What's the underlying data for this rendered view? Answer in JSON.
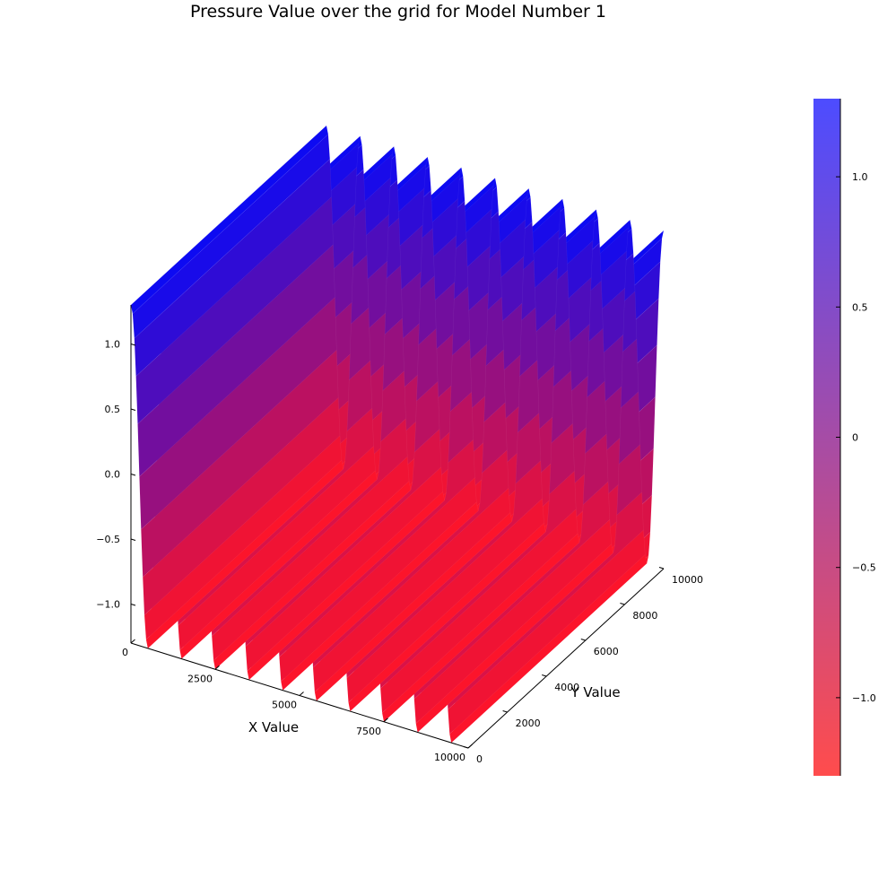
{
  "chart_data": {
    "type": "surface",
    "title": "Pressure Value over the grid for Model Number 1",
    "xlabel": "X Value",
    "ylabel": "Y Value",
    "zlabel": "",
    "xlim": [
      0,
      10000
    ],
    "ylim": [
      0,
      10000
    ],
    "zlim": [
      -1.3,
      1.3
    ],
    "x_ticks": [
      "0",
      "2500",
      "5000",
      "7500",
      "10000"
    ],
    "x_tick_values": [
      0,
      2500,
      5000,
      7500,
      10000
    ],
    "y_ticks": [
      "0",
      "2000",
      "4000",
      "6000",
      "8000",
      "10000"
    ],
    "y_tick_values": [
      0,
      2000,
      4000,
      6000,
      8000,
      10000
    ],
    "z_ticks": [
      "−1.0",
      "−0.5",
      "0.0",
      "0.5",
      "1.0"
    ],
    "z_tick_values": [
      -1.0,
      -0.5,
      0.0,
      0.5,
      1.0
    ],
    "surface": {
      "function": "z = cos(2*pi*x/period)",
      "period": 1000,
      "amplitude": 1.3,
      "x_range": [
        0,
        10000
      ],
      "y_range": [
        0,
        10000
      ]
    },
    "colorbar": {
      "ticks": [
        "−1.0",
        "−0.5",
        "0",
        "0.5",
        "1.0"
      ],
      "tick_values": [
        -1.0,
        -0.5,
        0,
        0.5,
        1.0
      ],
      "range": [
        -1.3,
        1.3
      ],
      "color_low": "#ff0000",
      "color_high": "#0000ff",
      "opacity": 0.7
    },
    "grid": false,
    "legend": "none"
  }
}
